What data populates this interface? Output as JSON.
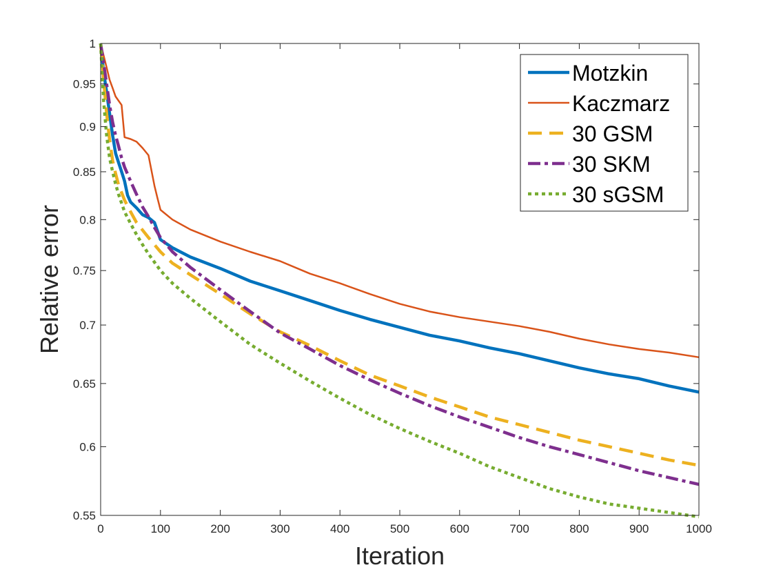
{
  "chart_data": {
    "type": "line",
    "title": "",
    "xlabel": "Iteration",
    "ylabel": "Relative error",
    "xlim": [
      0,
      1000
    ],
    "ylim": [
      0.55,
      1
    ],
    "yscale": "log",
    "grid": false,
    "legend_position": "top-right",
    "xticks": [
      0,
      100,
      200,
      300,
      400,
      500,
      600,
      700,
      800,
      900,
      1000
    ],
    "xtick_labels": [
      "0",
      "100",
      "200",
      "300",
      "400",
      "500",
      "600",
      "700",
      "800",
      "900",
      "1000"
    ],
    "yticks": [
      0.55,
      0.6,
      0.65,
      0.7,
      0.75,
      0.8,
      0.85,
      0.9,
      0.95,
      1
    ],
    "ytick_labels": [
      "0.55",
      "0.6",
      "0.65",
      "0.7",
      "0.75",
      "0.8",
      "0.85",
      "0.9",
      "0.95",
      "1"
    ],
    "series": [
      {
        "name": "Motzkin",
        "color": "#0072BD",
        "style": "solid",
        "width": "thick",
        "x": [
          0,
          5,
          10,
          15,
          20,
          25,
          30,
          35,
          40,
          45,
          50,
          60,
          70,
          80,
          90,
          100,
          120,
          150,
          200,
          250,
          300,
          350,
          400,
          450,
          500,
          550,
          600,
          650,
          700,
          750,
          800,
          850,
          900,
          950,
          1000
        ],
        "y": [
          1.0,
          0.965,
          0.94,
          0.915,
          0.89,
          0.87,
          0.86,
          0.85,
          0.84,
          0.825,
          0.818,
          0.812,
          0.805,
          0.802,
          0.797,
          0.78,
          0.772,
          0.763,
          0.752,
          0.74,
          0.731,
          0.722,
          0.713,
          0.705,
          0.698,
          0.691,
          0.686,
          0.68,
          0.675,
          0.669,
          0.663,
          0.658,
          0.654,
          0.648,
          0.643
        ]
      },
      {
        "name": "Kaczmarz",
        "color": "#D95319",
        "style": "solid",
        "width": "thin",
        "x": [
          0,
          5,
          10,
          15,
          20,
          25,
          30,
          35,
          40,
          50,
          60,
          70,
          80,
          90,
          95,
          100,
          120,
          150,
          200,
          250,
          300,
          350,
          400,
          450,
          500,
          550,
          600,
          650,
          700,
          750,
          800,
          850,
          900,
          950,
          1000
        ],
        "y": [
          1.0,
          0.985,
          0.97,
          0.955,
          0.945,
          0.935,
          0.93,
          0.925,
          0.888,
          0.886,
          0.883,
          0.876,
          0.868,
          0.835,
          0.822,
          0.81,
          0.8,
          0.79,
          0.778,
          0.768,
          0.759,
          0.747,
          0.738,
          0.728,
          0.719,
          0.712,
          0.707,
          0.703,
          0.699,
          0.694,
          0.688,
          0.683,
          0.679,
          0.676,
          0.672
        ]
      },
      {
        "name": "30 GSM",
        "color": "#EDB120",
        "style": "dashed",
        "width": "thick",
        "x": [
          0,
          5,
          10,
          15,
          20,
          25,
          30,
          40,
          50,
          60,
          80,
          100,
          120,
          150,
          200,
          250,
          300,
          350,
          400,
          450,
          500,
          550,
          600,
          650,
          700,
          750,
          800,
          850,
          900,
          950,
          1000
        ],
        "y": [
          1.0,
          0.955,
          0.915,
          0.885,
          0.862,
          0.848,
          0.836,
          0.82,
          0.808,
          0.797,
          0.782,
          0.768,
          0.757,
          0.746,
          0.728,
          0.71,
          0.694,
          0.682,
          0.669,
          0.657,
          0.648,
          0.639,
          0.631,
          0.623,
          0.617,
          0.611,
          0.605,
          0.6,
          0.595,
          0.59,
          0.586
        ]
      },
      {
        "name": "30 SKM",
        "color": "#7E2F8E",
        "style": "dashdot",
        "width": "thick",
        "x": [
          0,
          5,
          10,
          15,
          20,
          25,
          30,
          35,
          40,
          50,
          60,
          70,
          80,
          90,
          100,
          120,
          150,
          200,
          250,
          300,
          350,
          400,
          450,
          500,
          550,
          600,
          650,
          700,
          750,
          800,
          850,
          900,
          950,
          1000
        ],
        "y": [
          1.0,
          0.975,
          0.95,
          0.925,
          0.905,
          0.89,
          0.878,
          0.865,
          0.855,
          0.84,
          0.826,
          0.813,
          0.803,
          0.792,
          0.782,
          0.768,
          0.753,
          0.732,
          0.712,
          0.693,
          0.679,
          0.665,
          0.653,
          0.642,
          0.632,
          0.623,
          0.615,
          0.607,
          0.6,
          0.594,
          0.588,
          0.582,
          0.577,
          0.572
        ]
      },
      {
        "name": "30 sGSM",
        "color": "#77AC30",
        "style": "dotted",
        "width": "thick",
        "x": [
          0,
          5,
          10,
          15,
          20,
          25,
          30,
          40,
          50,
          60,
          70,
          80,
          90,
          100,
          120,
          150,
          200,
          250,
          300,
          350,
          400,
          450,
          500,
          550,
          600,
          650,
          700,
          750,
          800,
          850,
          900,
          950,
          1000
        ],
        "y": [
          1.0,
          0.93,
          0.89,
          0.865,
          0.85,
          0.837,
          0.826,
          0.808,
          0.796,
          0.785,
          0.775,
          0.766,
          0.758,
          0.75,
          0.738,
          0.724,
          0.703,
          0.683,
          0.667,
          0.652,
          0.638,
          0.625,
          0.614,
          0.604,
          0.595,
          0.585,
          0.577,
          0.569,
          0.563,
          0.558,
          0.555,
          0.552,
          0.549
        ]
      }
    ]
  }
}
